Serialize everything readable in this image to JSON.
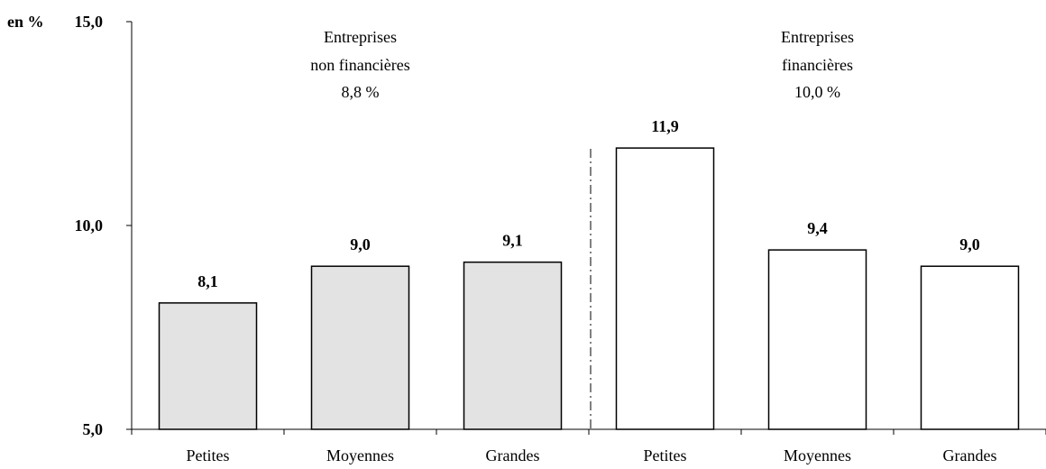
{
  "chart_data": {
    "type": "bar",
    "unit_label": "en %",
    "ylim": [
      5.0,
      15.0
    ],
    "y_ticks": [
      5.0,
      10.0,
      15.0
    ],
    "y_tick_labels": [
      "5,0",
      "10,0",
      "15,0"
    ],
    "grid": false,
    "categories": [
      "Petites",
      "Moyennes",
      "Grandes",
      "Petites",
      "Moyennes",
      "Grandes"
    ],
    "values": [
      8.1,
      9.0,
      9.1,
      11.9,
      9.4,
      9.0
    ],
    "value_labels": [
      "8,1",
      "9,0",
      "9,1",
      "11,9",
      "9,4",
      "9,0"
    ],
    "groups": [
      {
        "label_lines": [
          "Entreprises",
          "non financières",
          "8,8 %"
        ],
        "fill": "#e3e3e3",
        "categories": [
          0,
          1,
          2
        ]
      },
      {
        "label_lines": [
          "Entreprises",
          "financières",
          "10,0 %"
        ],
        "fill": "#ffffff",
        "categories": [
          3,
          4,
          5
        ]
      }
    ]
  }
}
